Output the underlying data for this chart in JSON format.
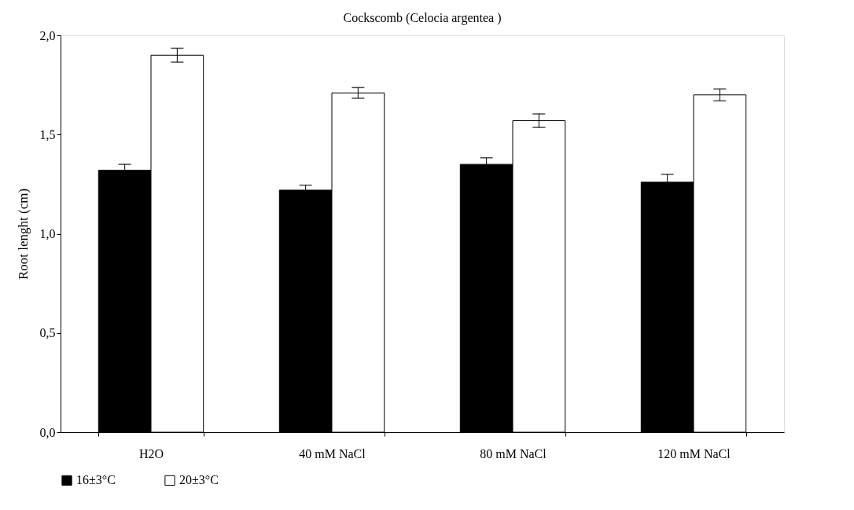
{
  "chart_data": {
    "type": "bar",
    "title": "Cockscomb (Celocia argentea )",
    "ylabel": "Root lenght (cm)",
    "categories": [
      "H2O",
      "40 mM NaCl",
      "80 mM NaCl",
      "120 mM NaCl"
    ],
    "series": [
      {
        "name": "16±3°C",
        "color": "#000000",
        "values": [
          1.32,
          1.22,
          1.35,
          1.26
        ],
        "errors": [
          0.03,
          0.025,
          0.033,
          0.04
        ]
      },
      {
        "name": "20±3°C",
        "color": "#ffffff",
        "values": [
          1.9,
          1.71,
          1.57,
          1.7
        ],
        "errors": [
          0.035,
          0.027,
          0.034,
          0.03
        ]
      }
    ],
    "ylim": [
      0,
      2
    ],
    "yticks": [
      {
        "value": 0,
        "label": "0,0"
      },
      {
        "value": 0.5,
        "label": "0,5"
      },
      {
        "value": 1,
        "label": "1,0"
      },
      {
        "value": 1.5,
        "label": "1,5"
      },
      {
        "value": 2,
        "label": "2,0"
      }
    ],
    "grid": false,
    "legend": "bottom"
  }
}
